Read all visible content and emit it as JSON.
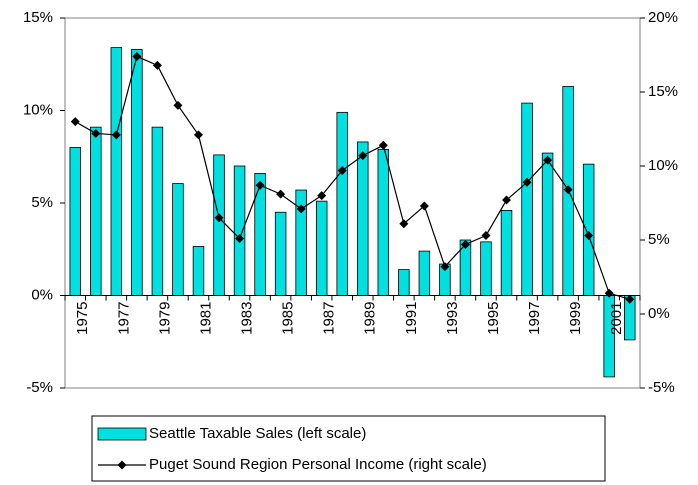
{
  "chart_data": {
    "type": "bar-line",
    "categories": [
      "1975",
      null,
      "1977",
      null,
      "1979",
      null,
      "1981",
      null,
      "1983",
      null,
      "1985",
      null,
      "1987",
      null,
      "1989",
      null,
      "1991",
      null,
      "1993",
      null,
      "1995",
      null,
      "1997",
      null,
      "1999",
      null,
      "2001",
      null
    ],
    "series": [
      {
        "name": "Seattle Taxable Sales (left scale)",
        "type": "bar",
        "color": "#00e0e0",
        "values": [
          8.0,
          9.1,
          13.4,
          13.3,
          9.1,
          6.05,
          2.65,
          7.6,
          7.0,
          6.6,
          4.5,
          5.7,
          5.1,
          9.9,
          8.3,
          7.9,
          1.4,
          2.4,
          1.7,
          3.0,
          2.9,
          4.6,
          10.4,
          7.7,
          11.3,
          7.1,
          -4.4,
          -2.4
        ]
      },
      {
        "name": "Puget Sound Region Personal Income (right scale)",
        "type": "line",
        "axis": "y2",
        "color": "#000000",
        "values": [
          13.0,
          12.2,
          12.1,
          17.4,
          16.8,
          14.1,
          12.1,
          6.5,
          5.1,
          8.7,
          8.1,
          7.1,
          8.0,
          9.7,
          10.7,
          11.4,
          6.1,
          7.3,
          3.2,
          4.7,
          5.3,
          7.7,
          8.9,
          10.4,
          8.4,
          5.3,
          1.4,
          1.0
        ]
      }
    ],
    "ylim": [
      -5,
      15
    ],
    "yticks": [
      {
        "value": -5,
        "label": "-5%"
      },
      {
        "value": 0,
        "label": "0%"
      },
      {
        "value": 5,
        "label": "5%"
      },
      {
        "value": 10,
        "label": "10%"
      },
      {
        "value": 15,
        "label": "15%"
      }
    ],
    "y2lim": [
      -5,
      20
    ],
    "y2ticks": [
      {
        "value": -5,
        "label": "-5%"
      },
      {
        "value": 0,
        "label": "0%"
      },
      {
        "value": 5,
        "label": "5%"
      },
      {
        "value": 10,
        "label": "10%"
      },
      {
        "value": 15,
        "label": "15%"
      },
      {
        "value": 20,
        "label": "20%"
      }
    ],
    "legend": "bottom"
  }
}
